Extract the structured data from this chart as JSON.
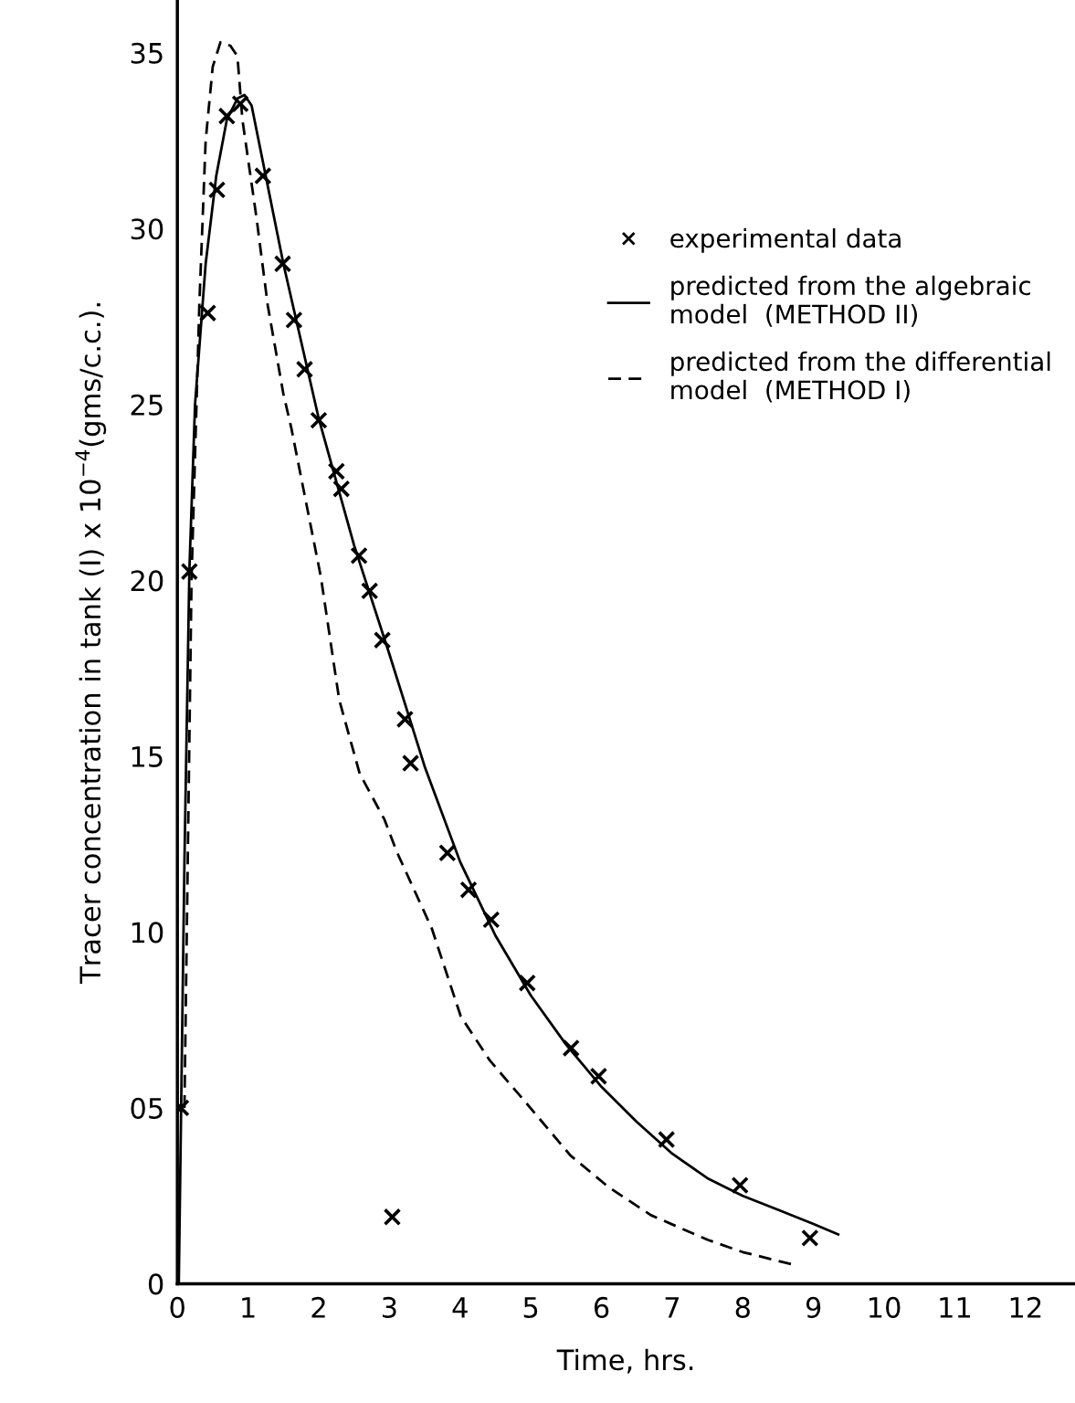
{
  "chart_data": {
    "type": "line",
    "xlabel": "Time, hrs.",
    "ylabel": "Tracer concentration in tank (I) x 10$^{−4}$(gms/c.c.).",
    "xlim": [
      0,
      12.7
    ],
    "ylim": [
      0,
      36.5
    ],
    "xticks": [
      0,
      1,
      2,
      3,
      4,
      5,
      6,
      7,
      8,
      9,
      10,
      11,
      12
    ],
    "yticks": [
      0,
      {
        "value": 5,
        "label": "05"
      },
      10,
      15,
      20,
      25,
      30,
      35
    ],
    "grid": false,
    "legend": "upper right",
    "series": [
      {
        "name": "experimental data",
        "type": "scatter",
        "marker": "cross",
        "color": "#000000",
        "x": [
          0.05,
          0.17,
          0.43,
          0.56,
          0.7,
          0.89,
          1.21,
          1.49,
          1.65,
          1.8,
          2.0,
          2.25,
          2.32,
          2.57,
          2.72,
          2.9,
          3.04,
          3.22,
          3.3,
          3.82,
          4.12,
          4.44,
          4.95,
          5.57,
          5.96,
          6.92,
          7.96,
          8.95
        ],
        "values": [
          5.0,
          20.25,
          27.6,
          31.1,
          33.2,
          33.55,
          31.5,
          29.0,
          27.4,
          26.0,
          24.55,
          23.1,
          22.6,
          20.7,
          19.7,
          18.3,
          1.9,
          16.05,
          14.8,
          12.25,
          11.2,
          10.35,
          8.55,
          6.7,
          5.9,
          4.1,
          2.8,
          1.3
        ]
      },
      {
        "name": "predicted from the algebraic\nmodel  (METHOD II)",
        "line_style": "solid",
        "color": "#000000",
        "x": [
          0.02,
          0.1,
          0.17,
          0.25,
          0.4,
          0.55,
          0.7,
          0.85,
          0.95,
          1.05,
          1.2,
          1.5,
          2,
          2.5,
          3,
          3.5,
          4,
          4.5,
          5,
          5.5,
          6,
          6.5,
          7,
          7.5,
          8,
          8.5,
          9,
          9.35
        ],
        "values": [
          0,
          12,
          20.3,
          25,
          29,
          31.5,
          33.1,
          33.7,
          33.8,
          33.5,
          32,
          29,
          24.6,
          21,
          17.9,
          14.7,
          12,
          9.9,
          8.2,
          6.8,
          5.6,
          4.6,
          3.7,
          3.0,
          2.5,
          2.1,
          1.7,
          1.4
        ]
      },
      {
        "name": "predicted from the differential\nmodel  (METHOD I)",
        "line_style": "dashed",
        "color": "#000000",
        "x": [
          0.1,
          0.2,
          0.31,
          0.4,
          0.5,
          0.61,
          0.75,
          0.85,
          0.92,
          1.12,
          1.28,
          1.5,
          1.61,
          2.03,
          2.29,
          2.58,
          2.93,
          3.1,
          3.6,
          4.01,
          4.42,
          4.91,
          5.56,
          6.1,
          6.7,
          7.5,
          8.0,
          8.7
        ],
        "values": [
          5,
          20,
          27.8,
          32.5,
          34.6,
          35.3,
          35.2,
          34.9,
          33.1,
          30.3,
          27.8,
          25.3,
          24.35,
          20.1,
          16.6,
          14.5,
          13.2,
          12.3,
          10.1,
          7.6,
          6.35,
          5.2,
          3.65,
          2.75,
          1.95,
          1.25,
          0.9,
          0.55
        ]
      }
    ]
  }
}
